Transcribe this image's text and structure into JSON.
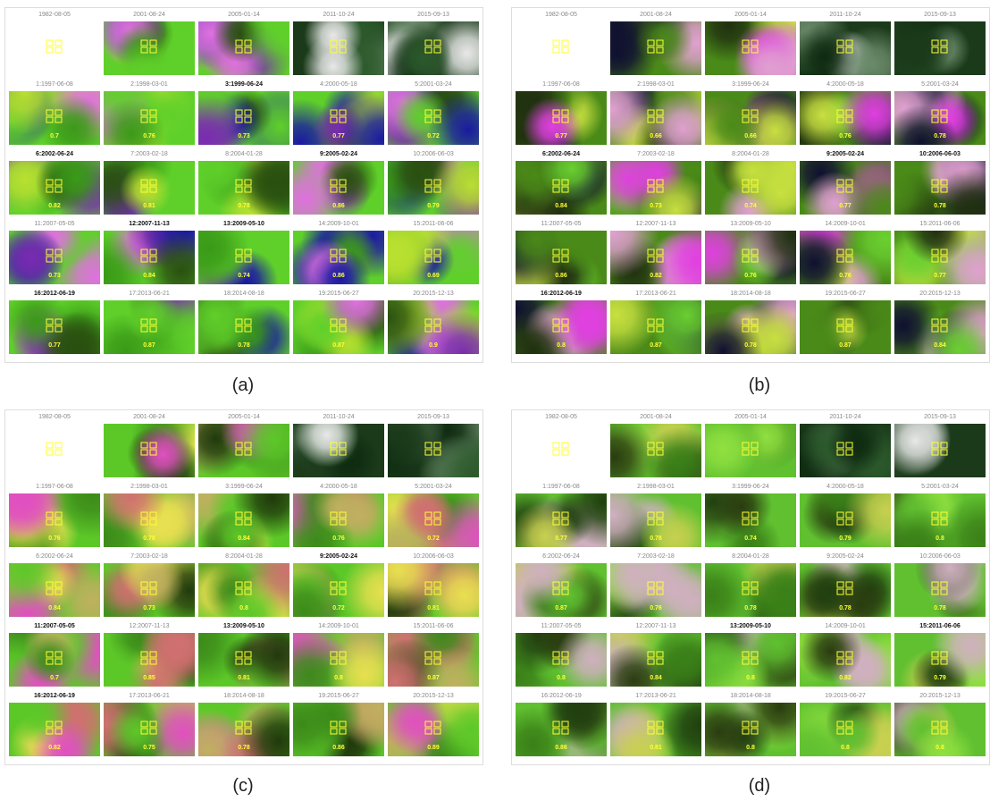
{
  "panels": [
    {
      "caption": "(a)",
      "headers": [
        "1982-08-05",
        "2001-08-24",
        "2005-01-14",
        "2011-10-24",
        "2015-09-13"
      ],
      "rows": [
        {
          "labels": [
            "1:1997-06-08",
            "2:1998-03-01",
            "3:1999-06-24",
            "4:2000-05-18",
            "5:2001-03-24"
          ],
          "values": [
            0.7,
            0.76,
            0.73,
            0.77,
            0.72
          ],
          "bold": [
            false,
            false,
            true,
            false,
            false
          ]
        },
        {
          "labels": [
            "6:2002-06-24",
            "7:2003-02-18",
            "8:2004-01-28",
            "9:2005-02-24",
            "10:2006-06-03"
          ],
          "values": [
            0.82,
            0.81,
            0.78,
            0.86,
            0.79
          ],
          "bold": [
            true,
            false,
            false,
            true,
            false
          ]
        },
        {
          "labels": [
            "11:2007-05-05",
            "12:2007-11-13",
            "13:2009-05-10",
            "14:2009-10-01",
            "15:2011-06-06"
          ],
          "values": [
            0.73,
            0.84,
            0.74,
            0.86,
            0.69
          ],
          "bold": [
            false,
            true,
            true,
            false,
            false
          ]
        },
        {
          "labels": [
            "16:2012-06-19",
            "17:2013-06-21",
            "18:2014-08-18",
            "19:2015-06-27",
            "20:2015-12-13"
          ],
          "values": [
            0.77,
            0.87,
            0.78,
            0.87,
            0.9
          ],
          "bold": [
            true,
            false,
            false,
            false,
            false
          ]
        }
      ]
    },
    {
      "caption": "(b)",
      "headers": [
        "1982-08-05",
        "2001-08-24",
        "2005-01-14",
        "2011-10-24",
        "2015-09-13"
      ],
      "rows": [
        {
          "labels": [
            "1:1997-06-08",
            "2:1998-03-01",
            "3:1999-06-24",
            "4:2000-05-18",
            "5:2001-03-24"
          ],
          "values": [
            0.77,
            0.66,
            0.66,
            0.76,
            0.78
          ],
          "bold": [
            false,
            false,
            false,
            false,
            false
          ]
        },
        {
          "labels": [
            "6:2002-06-24",
            "7:2003-02-18",
            "8:2004-01-28",
            "9:2005-02-24",
            "10:2006-06-03"
          ],
          "values": [
            0.84,
            0.73,
            0.74,
            0.77,
            0.78
          ],
          "bold": [
            true,
            false,
            false,
            true,
            true
          ]
        },
        {
          "labels": [
            "11:2007-05-05",
            "12:2007-11-13",
            "13:2009-05-10",
            "14:2009-10-01",
            "15:2011-06-06"
          ],
          "values": [
            0.86,
            0.82,
            0.76,
            0.76,
            0.77
          ],
          "bold": [
            false,
            false,
            false,
            false,
            false
          ]
        },
        {
          "labels": [
            "16:2012-06-19",
            "17:2013-06-21",
            "18:2014-08-18",
            "19:2015-06-27",
            "20:2015-12-13"
          ],
          "values": [
            0.8,
            0.87,
            0.78,
            0.87,
            0.84
          ],
          "bold": [
            true,
            false,
            false,
            false,
            false
          ]
        }
      ]
    },
    {
      "caption": "(c)",
      "headers": [
        "1982-08-05",
        "2001-08-24",
        "2005-01-14",
        "2011-10-24",
        "2015-09-13"
      ],
      "rows": [
        {
          "labels": [
            "1:1997-06-08",
            "2:1998-03-01",
            "3:1999-06-24",
            "4:2000-05-18",
            "5:2001-03-24"
          ],
          "values": [
            0.76,
            0.78,
            0.84,
            0.76,
            0.72
          ],
          "bold": [
            false,
            false,
            false,
            false,
            false
          ]
        },
        {
          "labels": [
            "6:2002-06-24",
            "7:2003-02-18",
            "8:2004-01-28",
            "9:2005-02-24",
            "10:2006-06-03"
          ],
          "values": [
            0.84,
            0.73,
            0.8,
            0.72,
            0.81
          ],
          "bold": [
            false,
            false,
            false,
            true,
            false
          ]
        },
        {
          "labels": [
            "11:2007-05-05",
            "12:2007-11-13",
            "13:2009-05-10",
            "14:2009-10-01",
            "15:2011-06-06"
          ],
          "values": [
            0.7,
            0.85,
            0.81,
            0.8,
            0.87
          ],
          "bold": [
            true,
            false,
            true,
            false,
            false
          ]
        },
        {
          "labels": [
            "16:2012-06-19",
            "17:2013-06-21",
            "18:2014-08-18",
            "19:2015-06-27",
            "20:2015-12-13"
          ],
          "values": [
            0.82,
            0.75,
            0.78,
            0.86,
            0.89
          ],
          "bold": [
            true,
            false,
            false,
            false,
            false
          ]
        }
      ]
    },
    {
      "caption": "(d)",
      "headers": [
        "1982-08-05",
        "2001-08-24",
        "2005-01-14",
        "2011-10-24",
        "2015-09-13"
      ],
      "rows": [
        {
          "labels": [
            "1:1997-06-08",
            "2:1998-03-01",
            "3:1999-06-24",
            "4:2000-05-18",
            "5:2001-03-24"
          ],
          "values": [
            0.77,
            0.78,
            0.74,
            0.79,
            0.8
          ],
          "bold": [
            false,
            false,
            false,
            false,
            false
          ]
        },
        {
          "labels": [
            "6:2002-06-24",
            "7:2003-02-18",
            "8:2004-01-28",
            "9:2005-02-24",
            "10:2006-06-03"
          ],
          "values": [
            0.87,
            0.76,
            0.78,
            0.78,
            0.78
          ],
          "bold": [
            false,
            false,
            false,
            false,
            false
          ]
        },
        {
          "labels": [
            "11:2007-05-05",
            "12:2007-11-13",
            "13:2009-05-10",
            "14:2009-10-01",
            "15:2011-06-06"
          ],
          "values": [
            0.8,
            0.84,
            0.8,
            0.82,
            0.79
          ],
          "bold": [
            false,
            false,
            true,
            false,
            true
          ]
        },
        {
          "labels": [
            "16:2012-06-19",
            "17:2013-06-21",
            "18:2014-08-18",
            "19:2015-06-27",
            "20:2015-12-13"
          ],
          "values": [
            0.86,
            0.81,
            0.8,
            0.8,
            0.8
          ],
          "bold": [
            false,
            false,
            false,
            false,
            false
          ]
        }
      ]
    }
  ]
}
